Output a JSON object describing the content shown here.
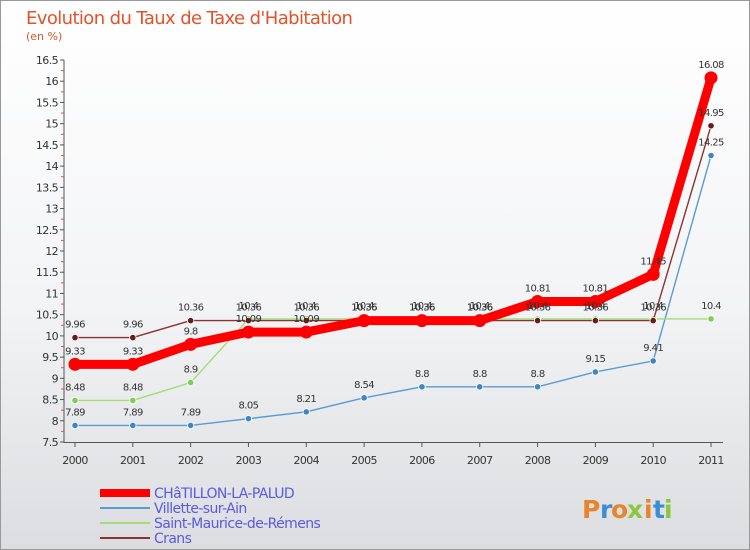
{
  "chart_data": {
    "type": "line",
    "title": "Evolution du Taux de Taxe d'Habitation",
    "subtitle": "(en %)",
    "xlabel": "",
    "ylabel": "",
    "categories": [
      "2000",
      "2001",
      "2002",
      "2003",
      "2004",
      "2005",
      "2006",
      "2007",
      "2008",
      "2009",
      "2010",
      "2011"
    ],
    "ylim": [
      7.5,
      16.5
    ],
    "yticks": [
      "7.5",
      "8",
      "8.5",
      "9",
      "9.5",
      "10",
      "10.5",
      "11",
      "11.5",
      "12",
      "12.5",
      "13",
      "13.5",
      "14",
      "14.5",
      "15",
      "15.5",
      "16",
      "16.5"
    ],
    "grid": false,
    "legend_position": "bottom-left",
    "series": [
      {
        "name": "CHâTILLON-LA-PALUD",
        "color": "#ff0000",
        "marker_color": "#ff0000",
        "emphasis": true,
        "values": [
          9.33,
          9.33,
          9.8,
          10.09,
          10.09,
          10.36,
          10.36,
          10.36,
          10.81,
          10.81,
          11.45,
          16.08
        ],
        "labels": [
          "9.33",
          "9.33",
          "9.8",
          "10.09",
          "10.09",
          "10.36",
          "10.36",
          "10.36",
          "10.81",
          "10.81",
          "11.45",
          "16.08"
        ]
      },
      {
        "name": "Villette-sur-Ain",
        "color": "#5b9bd0",
        "marker_color": "#3d85c6",
        "values": [
          7.89,
          7.89,
          7.89,
          8.05,
          8.21,
          8.54,
          8.8,
          8.8,
          8.8,
          9.15,
          9.41,
          14.25
        ],
        "labels": [
          "7.89",
          "7.89",
          "7.89",
          "8.05",
          "8.21",
          "8.54",
          "8.8",
          "8.8",
          "8.8",
          "9.15",
          "9.41",
          "14.25"
        ]
      },
      {
        "name": "Saint-Maurice-de-Rémens",
        "color": "#a4dc7c",
        "marker_color": "#7dd04d",
        "values": [
          8.48,
          8.48,
          8.9,
          10.4,
          10.4,
          10.4,
          10.4,
          10.4,
          10.4,
          10.4,
          10.4,
          10.4
        ],
        "labels": [
          "8.48",
          "8.48",
          "8.9",
          "10.4",
          "10.4",
          "10.4",
          "10.4",
          "10.4",
          "10.4",
          "10.4",
          "10.4",
          "10.4"
        ]
      },
      {
        "name": "Crans",
        "color": "#8b3333",
        "marker_color": "#6b1a1a",
        "values": [
          9.96,
          9.96,
          10.36,
          10.36,
          10.36,
          10.36,
          10.36,
          10.36,
          10.36,
          10.36,
          10.36,
          14.95
        ],
        "labels": [
          "9.96",
          "9.96",
          "10.36",
          "10.36",
          "10.36",
          "10.36",
          "10.36",
          "10.36",
          "10.36",
          "10.36",
          "10.36",
          "14.95"
        ]
      }
    ]
  },
  "logo": {
    "text": "Proxiti",
    "colors": [
      "#e8842c",
      "#3b8ed6",
      "#e8842c",
      "#8dc63f",
      "#e8842c",
      "#3b8ed6",
      "#8dc63f"
    ]
  }
}
